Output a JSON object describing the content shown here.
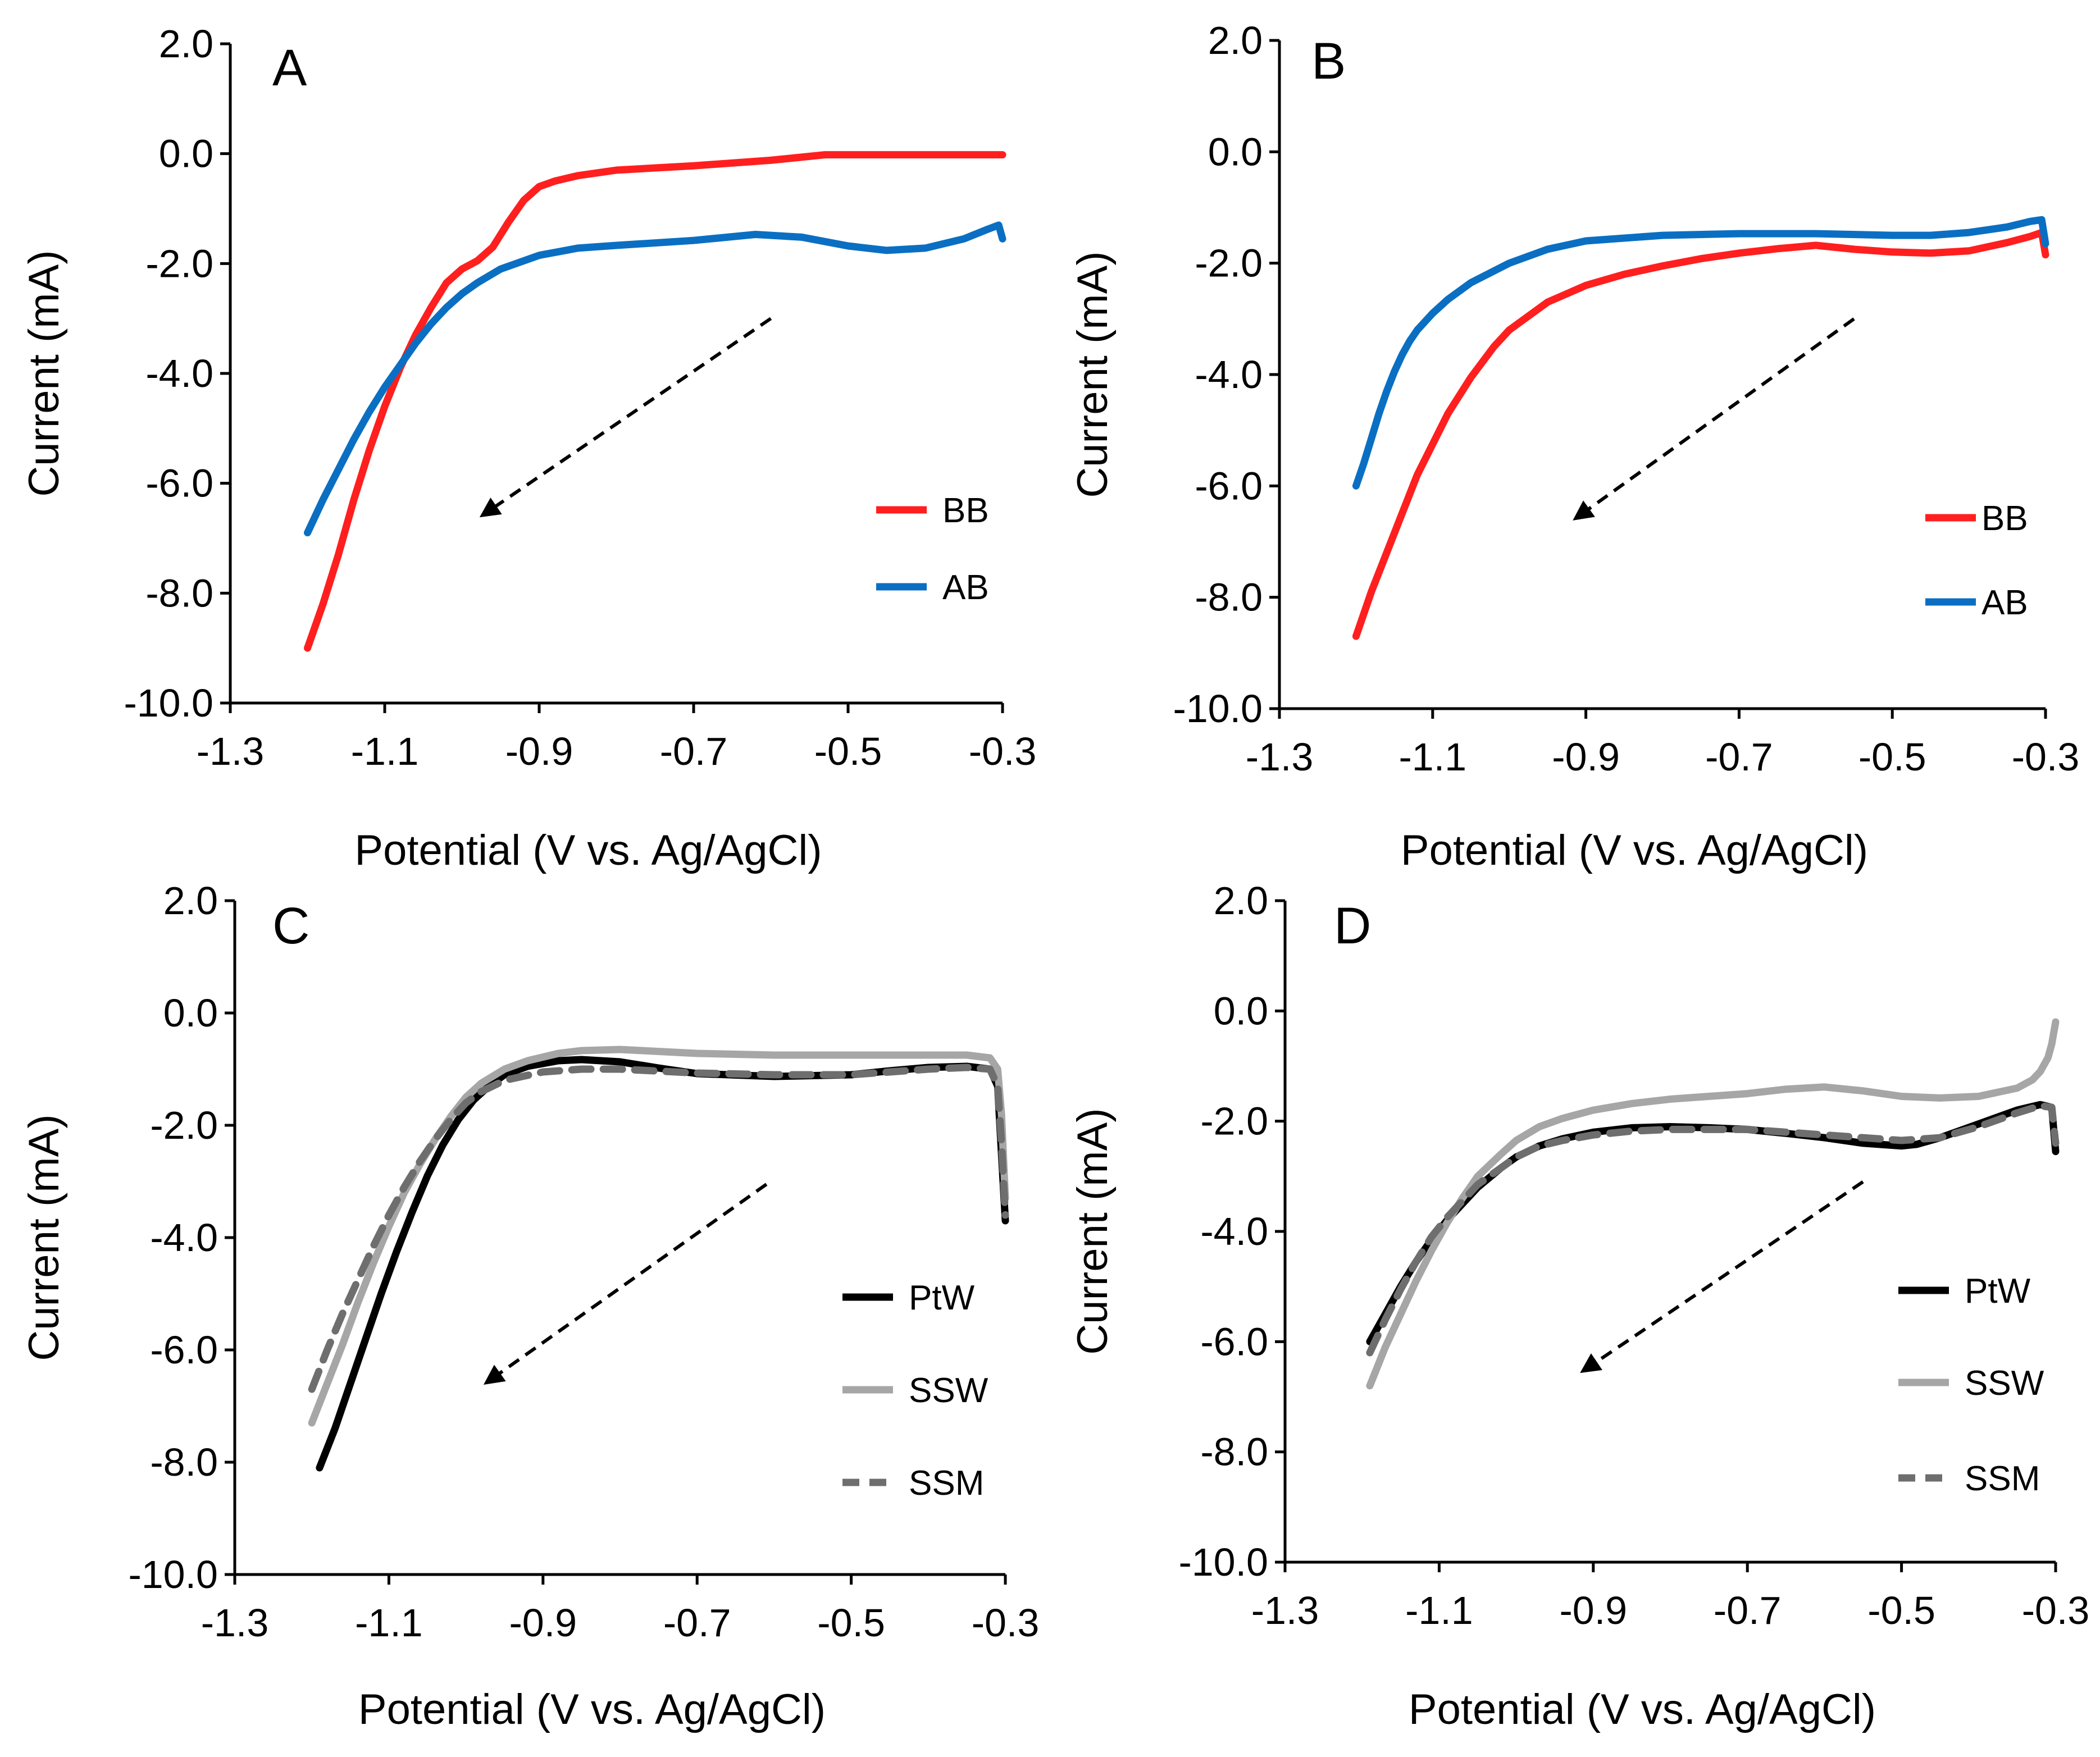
{
  "colors": {
    "BB": "#ff1f1f",
    "AB": "#0a6fc2",
    "PtW": "#000000",
    "SSW": "#a6a6a6",
    "SSM": "#6e6e6e"
  },
  "chart_data": [
    {
      "type": "line",
      "panel": "A",
      "xlabel": "Potential (V vs. Ag/AgCl)",
      "ylabel": "Current (mA)",
      "xlim": [
        -1.3,
        -0.3
      ],
      "ylim": [
        -10.0,
        2.0
      ],
      "xticks": [
        "-1.3",
        "-1.1",
        "-0.9",
        "-0.7",
        "-0.5",
        "-0.3"
      ],
      "yticks": [
        "2.0",
        "0.0",
        "-2.0",
        "-4.0",
        "-6.0",
        "-8.0",
        "-10.0"
      ],
      "legend": {
        "position": "right",
        "entries": [
          "BB",
          "AB"
        ]
      },
      "arrow": {
        "from": [
          -0.6,
          -3.0
        ],
        "to": [
          -0.97,
          -6.55
        ]
      },
      "series": [
        {
          "name": "BB",
          "style": "solid",
          "x": [
            -1.2,
            -1.18,
            -1.16,
            -1.14,
            -1.12,
            -1.1,
            -1.08,
            -1.06,
            -1.04,
            -1.02,
            -1.0,
            -0.98,
            -0.96,
            -0.94,
            -0.92,
            -0.9,
            -0.88,
            -0.85,
            -0.8,
            -0.7,
            -0.6,
            -0.53,
            -0.45,
            -0.38,
            -0.3
          ],
          "y": [
            -9.0,
            -8.2,
            -7.3,
            -6.3,
            -5.4,
            -4.6,
            -3.9,
            -3.3,
            -2.8,
            -2.35,
            -2.1,
            -1.95,
            -1.7,
            -1.25,
            -0.85,
            -0.6,
            -0.5,
            -0.4,
            -0.3,
            -0.22,
            -0.12,
            -0.02,
            -0.02,
            -0.02,
            -0.02
          ]
        },
        {
          "name": "AB",
          "style": "solid",
          "x": [
            -1.2,
            -1.18,
            -1.16,
            -1.14,
            -1.12,
            -1.1,
            -1.08,
            -1.06,
            -1.04,
            -1.02,
            -1.0,
            -0.98,
            -0.95,
            -0.9,
            -0.85,
            -0.8,
            -0.7,
            -0.62,
            -0.56,
            -0.5,
            -0.45,
            -0.4,
            -0.35,
            -0.32,
            -0.305,
            -0.3
          ],
          "y": [
            -6.9,
            -6.3,
            -5.75,
            -5.2,
            -4.7,
            -4.25,
            -3.85,
            -3.45,
            -3.1,
            -2.8,
            -2.55,
            -2.35,
            -2.1,
            -1.85,
            -1.72,
            -1.67,
            -1.58,
            -1.47,
            -1.52,
            -1.68,
            -1.76,
            -1.72,
            -1.55,
            -1.38,
            -1.3,
            -1.55
          ]
        }
      ]
    },
    {
      "type": "line",
      "panel": "B",
      "xlabel": "Potential (V vs. Ag/AgCl)",
      "ylabel": "Current (mA)",
      "xlim": [
        -1.3,
        -0.3
      ],
      "ylim": [
        -10.0,
        2.0
      ],
      "xticks": [
        "-1.3",
        "-1.1",
        "-0.9",
        "-0.7",
        "-0.5",
        "-0.3"
      ],
      "yticks": [
        "2.0",
        "0.0",
        "-2.0",
        "-4.0",
        "-6.0",
        "-8.0",
        "-10.0"
      ],
      "legend": {
        "position": "right",
        "entries": [
          "BB",
          "AB"
        ]
      },
      "arrow": {
        "from": [
          -0.55,
          -3.0
        ],
        "to": [
          -0.91,
          -6.55
        ]
      },
      "series": [
        {
          "name": "BB",
          "style": "solid",
          "x": [
            -1.2,
            -1.18,
            -1.16,
            -1.14,
            -1.12,
            -1.1,
            -1.08,
            -1.05,
            -1.02,
            -1.0,
            -0.95,
            -0.9,
            -0.85,
            -0.8,
            -0.75,
            -0.7,
            -0.65,
            -0.6,
            -0.55,
            -0.5,
            -0.45,
            -0.4,
            -0.35,
            -0.32,
            -0.305,
            -0.3
          ],
          "y": [
            -8.7,
            -7.9,
            -7.2,
            -6.5,
            -5.8,
            -5.25,
            -4.7,
            -4.05,
            -3.5,
            -3.2,
            -2.7,
            -2.4,
            -2.2,
            -2.05,
            -1.92,
            -1.82,
            -1.74,
            -1.68,
            -1.75,
            -1.8,
            -1.82,
            -1.78,
            -1.63,
            -1.52,
            -1.45,
            -1.85
          ]
        },
        {
          "name": "AB",
          "style": "solid",
          "x": [
            -1.2,
            -1.19,
            -1.18,
            -1.17,
            -1.16,
            -1.15,
            -1.14,
            -1.13,
            -1.12,
            -1.1,
            -1.08,
            -1.05,
            -1.0,
            -0.95,
            -0.9,
            -0.8,
            -0.7,
            -0.6,
            -0.5,
            -0.45,
            -0.4,
            -0.35,
            -0.32,
            -0.305,
            -0.3
          ],
          "y": [
            -6.0,
            -5.6,
            -5.15,
            -4.7,
            -4.3,
            -3.95,
            -3.65,
            -3.4,
            -3.2,
            -2.9,
            -2.65,
            -2.35,
            -2.0,
            -1.75,
            -1.6,
            -1.5,
            -1.47,
            -1.47,
            -1.5,
            -1.5,
            -1.45,
            -1.35,
            -1.25,
            -1.22,
            -1.65
          ]
        }
      ]
    },
    {
      "type": "line",
      "panel": "C",
      "xlabel": "Potential (V vs. Ag/AgCl)",
      "ylabel": "Current (mA)",
      "xlim": [
        -1.3,
        -0.3
      ],
      "ylim": [
        -10.0,
        2.0
      ],
      "xticks": [
        "-1.3",
        "-1.1",
        "-0.9",
        "-0.7",
        "-0.5",
        "-0.3"
      ],
      "yticks": [
        "2.0",
        "0.0",
        "-2.0",
        "-4.0",
        "-6.0",
        "-8.0",
        "-10.0"
      ],
      "legend": {
        "position": "right",
        "entries": [
          "PtW",
          "SSW",
          "SSM"
        ]
      },
      "arrow": {
        "from": [
          -0.61,
          -3.05
        ],
        "to": [
          -0.97,
          -6.55
        ]
      },
      "series": [
        {
          "name": "PtW",
          "style": "solid",
          "x": [
            -1.19,
            -1.17,
            -1.15,
            -1.13,
            -1.11,
            -1.09,
            -1.07,
            -1.05,
            -1.03,
            -1.01,
            -0.99,
            -0.97,
            -0.95,
            -0.92,
            -0.88,
            -0.85,
            -0.8,
            -0.75,
            -0.7,
            -0.6,
            -0.5,
            -0.45,
            -0.4,
            -0.35,
            -0.32,
            -0.31,
            -0.305,
            -0.3
          ],
          "y": [
            -8.1,
            -7.4,
            -6.6,
            -5.8,
            -5.0,
            -4.25,
            -3.55,
            -2.9,
            -2.35,
            -1.9,
            -1.55,
            -1.3,
            -1.1,
            -0.95,
            -0.85,
            -0.83,
            -0.87,
            -0.98,
            -1.08,
            -1.13,
            -1.1,
            -1.03,
            -0.97,
            -0.95,
            -1.0,
            -1.3,
            -2.5,
            -3.7
          ]
        },
        {
          "name": "SSW",
          "style": "solid",
          "x": [
            -1.2,
            -1.18,
            -1.16,
            -1.14,
            -1.12,
            -1.1,
            -1.08,
            -1.06,
            -1.04,
            -1.02,
            -1.0,
            -0.98,
            -0.95,
            -0.92,
            -0.88,
            -0.85,
            -0.8,
            -0.7,
            -0.6,
            -0.5,
            -0.4,
            -0.35,
            -0.32,
            -0.31,
            -0.305,
            -0.3
          ],
          "y": [
            -7.3,
            -6.6,
            -5.9,
            -5.15,
            -4.45,
            -3.8,
            -3.2,
            -2.7,
            -2.25,
            -1.85,
            -1.5,
            -1.25,
            -1.0,
            -0.85,
            -0.72,
            -0.67,
            -0.65,
            -0.72,
            -0.75,
            -0.75,
            -0.75,
            -0.75,
            -0.8,
            -1.0,
            -1.8,
            -3.3
          ]
        },
        {
          "name": "SSM",
          "style": "dashed",
          "x": [
            -1.2,
            -1.18,
            -1.16,
            -1.14,
            -1.12,
            -1.1,
            -1.08,
            -1.06,
            -1.04,
            -1.02,
            -1.0,
            -0.98,
            -0.95,
            -0.9,
            -0.85,
            -0.8,
            -0.7,
            -0.6,
            -0.5,
            -0.45,
            -0.4,
            -0.35,
            -0.32,
            -0.31,
            -0.305,
            -0.3
          ],
          "y": [
            -6.7,
            -6.0,
            -5.35,
            -4.75,
            -4.15,
            -3.6,
            -3.1,
            -2.65,
            -2.25,
            -1.9,
            -1.6,
            -1.4,
            -1.2,
            -1.05,
            -1.0,
            -1.0,
            -1.07,
            -1.1,
            -1.1,
            -1.05,
            -1.0,
            -0.97,
            -1.0,
            -1.3,
            -2.3,
            -3.6
          ]
        }
      ]
    },
    {
      "type": "line",
      "panel": "D",
      "xlabel": "Potential (V vs. Ag/AgCl)",
      "ylabel": "Current (mA)",
      "xlim": [
        -1.3,
        -0.3
      ],
      "ylim": [
        -10.0,
        2.0
      ],
      "xticks": [
        "-1.3",
        "-1.1",
        "-0.9",
        "-0.7",
        "-0.5",
        "-0.3"
      ],
      "yticks": [
        "2.0",
        "0.0",
        "-2.0",
        "-4.0",
        "-6.0",
        "-8.0",
        "-10.0"
      ],
      "legend": {
        "position": "right",
        "entries": [
          "PtW",
          "SSW",
          "SSM"
        ]
      },
      "arrow": {
        "from": [
          -0.55,
          -3.1
        ],
        "to": [
          -0.91,
          -6.5
        ]
      },
      "series": [
        {
          "name": "PtW",
          "style": "solid",
          "x": [
            -1.19,
            -1.17,
            -1.15,
            -1.13,
            -1.11,
            -1.09,
            -1.07,
            -1.05,
            -1.02,
            -1.0,
            -0.97,
            -0.94,
            -0.9,
            -0.85,
            -0.8,
            -0.75,
            -0.7,
            -0.65,
            -0.6,
            -0.55,
            -0.5,
            -0.48,
            -0.45,
            -0.4,
            -0.35,
            -0.32,
            -0.305,
            -0.3
          ],
          "y": [
            -6.0,
            -5.5,
            -5.0,
            -4.55,
            -4.15,
            -3.8,
            -3.5,
            -3.2,
            -2.85,
            -2.65,
            -2.45,
            -2.32,
            -2.2,
            -2.12,
            -2.1,
            -2.12,
            -2.15,
            -2.22,
            -2.3,
            -2.4,
            -2.45,
            -2.42,
            -2.3,
            -2.05,
            -1.8,
            -1.7,
            -1.75,
            -2.55
          ]
        },
        {
          "name": "SSW",
          "style": "solid",
          "x": [
            -1.19,
            -1.17,
            -1.15,
            -1.13,
            -1.11,
            -1.09,
            -1.07,
            -1.05,
            -1.02,
            -1.0,
            -0.97,
            -0.94,
            -0.9,
            -0.85,
            -0.8,
            -0.75,
            -0.7,
            -0.65,
            -0.6,
            -0.55,
            -0.5,
            -0.45,
            -0.4,
            -0.35,
            -0.33,
            -0.32,
            -0.31,
            -0.305,
            -0.3
          ],
          "y": [
            -6.8,
            -6.1,
            -5.5,
            -4.9,
            -4.35,
            -3.85,
            -3.4,
            -3.0,
            -2.6,
            -2.35,
            -2.1,
            -1.95,
            -1.8,
            -1.68,
            -1.6,
            -1.55,
            -1.5,
            -1.42,
            -1.38,
            -1.45,
            -1.55,
            -1.58,
            -1.55,
            -1.4,
            -1.25,
            -1.1,
            -0.85,
            -0.6,
            -0.2
          ]
        },
        {
          "name": "SSM",
          "style": "dashed",
          "x": [
            -1.19,
            -1.17,
            -1.15,
            -1.13,
            -1.11,
            -1.09,
            -1.07,
            -1.05,
            -1.02,
            -1.0,
            -0.97,
            -0.94,
            -0.9,
            -0.85,
            -0.8,
            -0.75,
            -0.7,
            -0.65,
            -0.6,
            -0.55,
            -0.5,
            -0.45,
            -0.4,
            -0.35,
            -0.32,
            -0.305,
            -0.3
          ],
          "y": [
            -6.2,
            -5.6,
            -5.05,
            -4.55,
            -4.1,
            -3.75,
            -3.45,
            -3.15,
            -2.85,
            -2.65,
            -2.45,
            -2.35,
            -2.25,
            -2.18,
            -2.15,
            -2.15,
            -2.15,
            -2.2,
            -2.25,
            -2.3,
            -2.35,
            -2.3,
            -2.1,
            -1.85,
            -1.72,
            -1.75,
            -2.4
          ]
        }
      ]
    }
  ]
}
